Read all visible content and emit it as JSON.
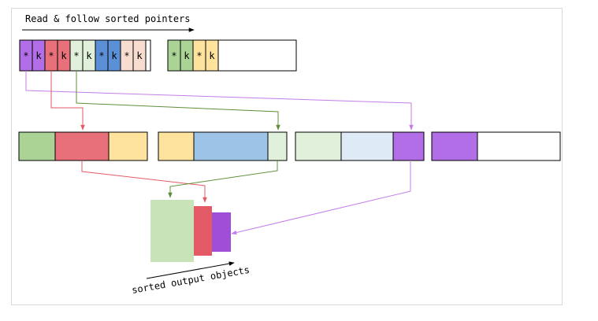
{
  "labels": {
    "top": "Read & follow sorted pointers",
    "bottom": "sorted output objects"
  },
  "symbols": {
    "pointer": "*",
    "key": "k"
  },
  "colors": {
    "purple": "#b26ee6",
    "purple_dark": "#a04ed8",
    "red": "#e8707a",
    "red_dark": "#e35a66",
    "green": "#aad395",
    "green_light": "#c9e3b8",
    "mint": "#e0f0da",
    "blue": "#5b8fd6",
    "blue_light": "#9dc3e6",
    "blue_pale": "#deeaf6",
    "peach": "#f7dccf",
    "yellow": "#fde39e",
    "arrow_purple": "#c47ee8",
    "arrow_red": "#e35a66",
    "arrow_green": "#5e8f3a"
  }
}
